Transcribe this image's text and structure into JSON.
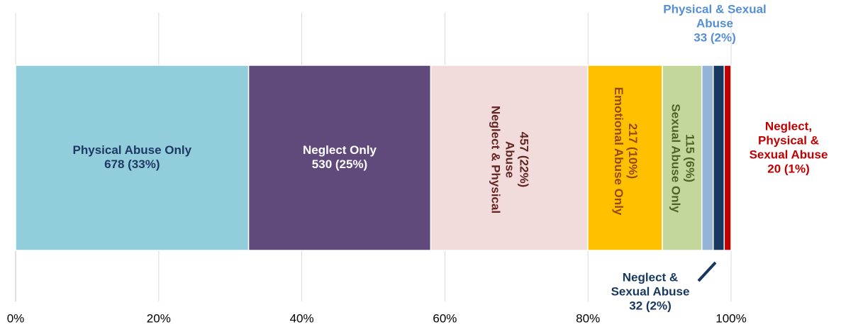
{
  "chart_data": {
    "type": "bar",
    "orientation": "horizontal-stacked-100",
    "title": "",
    "xlabel": "",
    "ylabel": "",
    "xlim": [
      0,
      100
    ],
    "x_ticks": [
      "0%",
      "20%",
      "40%",
      "60%",
      "80%",
      "100%"
    ],
    "grid": "vertical",
    "legend": "none",
    "series": [
      {
        "name": "Physical Abuse Only",
        "count": 678,
        "percent": 33,
        "value_label": "678 (33%)",
        "color": "#92CDDC",
        "text_color": "#1F3864"
      },
      {
        "name": "Neglect Only",
        "count": 530,
        "percent": 25,
        "value_label": "530 (25%)",
        "color": "#604A7B",
        "text_color": "#FFFFFF"
      },
      {
        "name": "Neglect & Physical Abuse",
        "count": 457,
        "percent": 22,
        "value_label": "457 (22%)",
        "color": "#F2DCDB",
        "text_color": "#632523"
      },
      {
        "name": "Emotional Abuse Only",
        "count": 217,
        "percent": 10,
        "value_label": "217 (10%)",
        "color": "#FFC000",
        "text_color": "#984807"
      },
      {
        "name": "Sexual Abuse Only",
        "count": 115,
        "percent": 6,
        "value_label": "115 (6%)",
        "color": "#C3D69B",
        "text_color": "#4F6228"
      },
      {
        "name": "Physical & Sexual Abuse",
        "count": 33,
        "percent": 2,
        "value_label": "33 (2%)",
        "color": "#95B3D7",
        "text_color": "#558ED5"
      },
      {
        "name": "Neglect & Sexual Abuse",
        "count": 32,
        "percent": 2,
        "value_label": "32 (2%)",
        "color": "#17375E",
        "text_color": "#17375E"
      },
      {
        "name": "Neglect, Physical & Sexual Abuse",
        "count": 20,
        "percent": 1,
        "value_label": "20 (1%)",
        "color": "#C00000",
        "text_color": "#C00000"
      }
    ],
    "label_lines": {
      "physical_abuse_only": [
        "Physical Abuse Only",
        "678 (33%)"
      ],
      "neglect_only": [
        "Neglect Only",
        "530 (25%)"
      ],
      "neglect_physical": [
        "Neglect & Physical",
        "Abuse",
        "457 (22%)"
      ],
      "emotional_only": [
        "Emotional Abuse Only",
        "217 (10%)"
      ],
      "sexual_only": [
        "Sexual Abuse Only",
        "115 (6%)"
      ],
      "physical_sexual": [
        "Physical & Sexual",
        "Abuse",
        "33 (2%)"
      ],
      "neglect_sexual": [
        "Neglect &",
        "Sexual Abuse",
        "32 (2%)"
      ],
      "neglect_physical_sexual": [
        "Neglect,",
        "Physical &",
        "Sexual Abuse",
        "20 (1%)"
      ]
    }
  }
}
